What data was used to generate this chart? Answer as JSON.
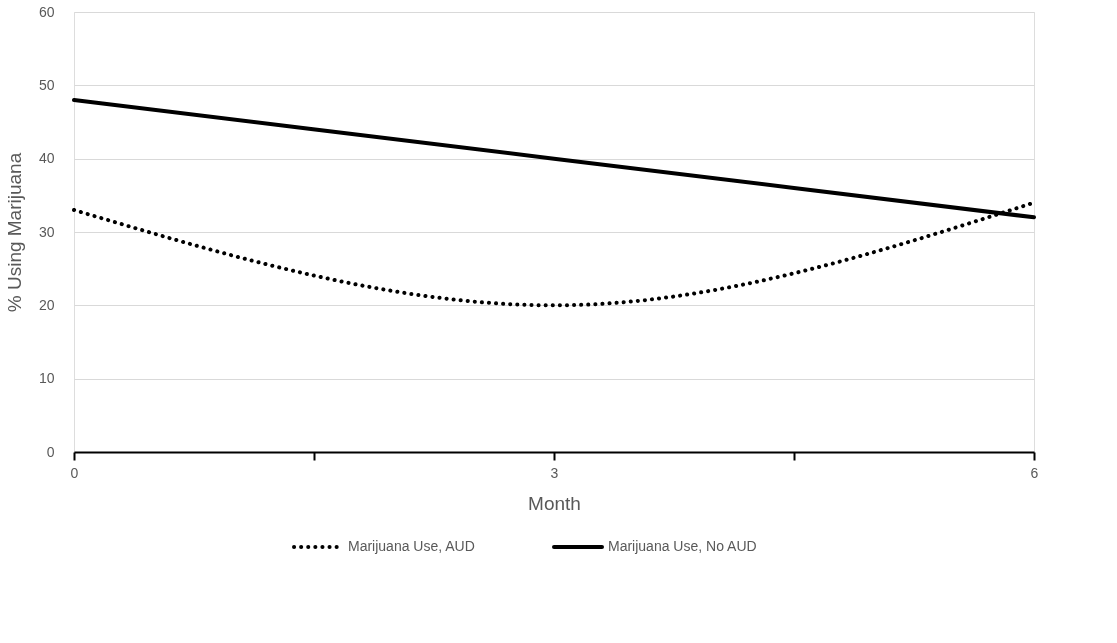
{
  "chart_data": {
    "type": "line",
    "xlabel": "Month",
    "ylabel": "% Using Marijuana",
    "xlim": [
      0,
      6
    ],
    "xticks": [
      0,
      {
        "value": 1.5,
        "label": null
      },
      3,
      {
        "value": 4.5,
        "label": null
      },
      6
    ],
    "ylim": [
      0,
      60
    ],
    "yticks": [
      0,
      10,
      20,
      30,
      40,
      50,
      60
    ],
    "grid": "y",
    "legend": "bottom",
    "marker": "none",
    "series": [
      {
        "name": "Marijuana Use,  AUD",
        "color": "#000000",
        "line_style": "dotted",
        "x": [
          0,
          3,
          6
        ],
        "values": [
          33,
          20,
          34
        ]
      },
      {
        "name": "Marijuana Use, No AUD",
        "color": "#000000",
        "line_style": "solid",
        "x": [
          0,
          3,
          6
        ],
        "values": [
          48,
          40,
          32
        ]
      }
    ]
  }
}
